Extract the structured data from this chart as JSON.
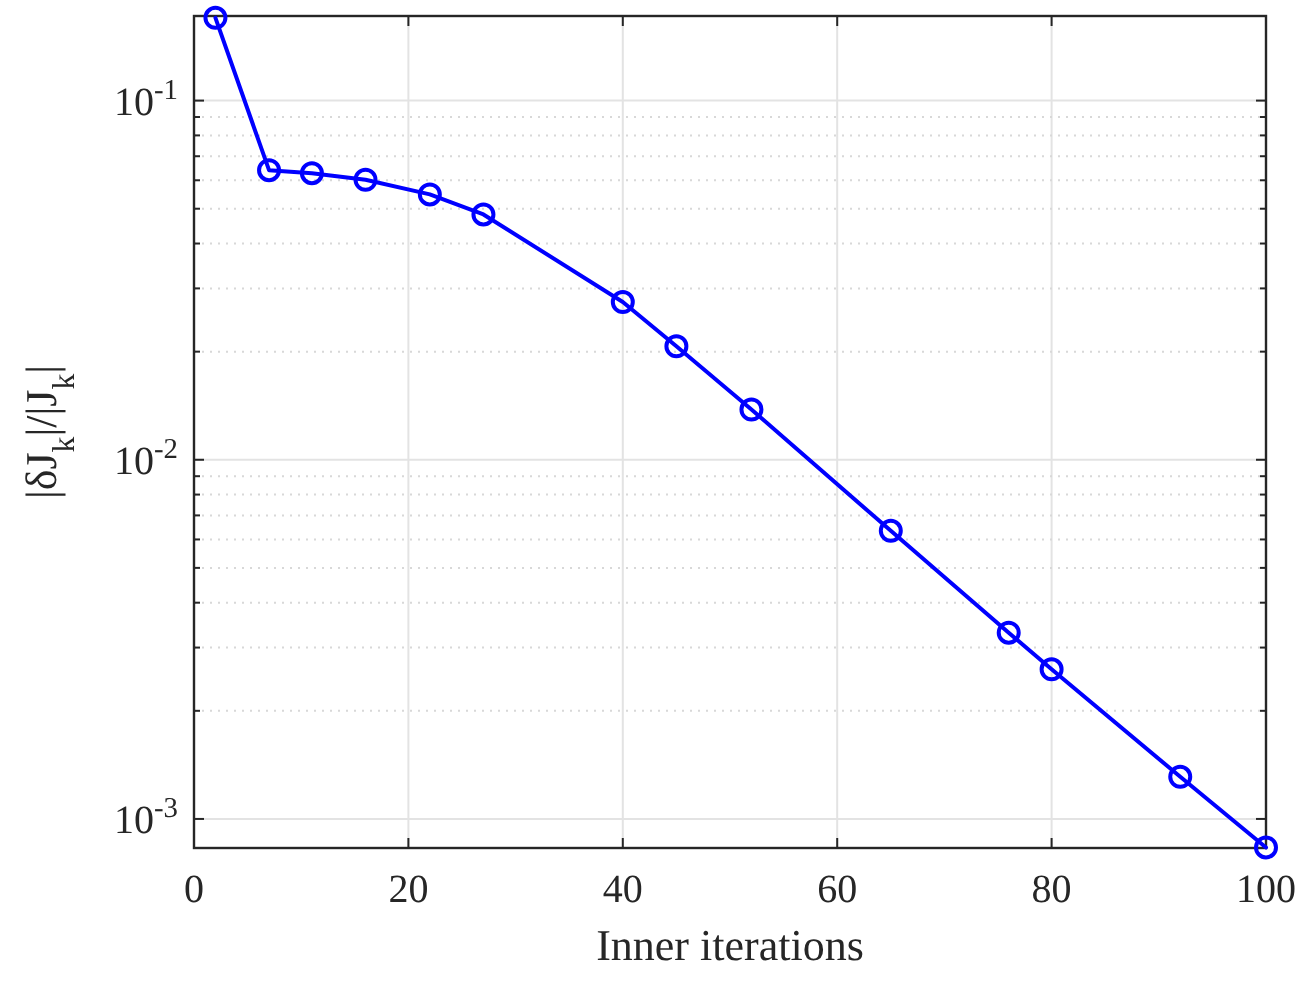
{
  "chart_data": {
    "type": "line",
    "xlabel": "Inner iterations",
    "ylabel": "|δJ$_{k}$|/|J$_{k}$|",
    "x": [
      2,
      7,
      11,
      16,
      22,
      27,
      40,
      45,
      52,
      65,
      76,
      80,
      92,
      100
    ],
    "series": [
      {
        "color": "#0000ff",
        "values": [
          0.17,
          0.064,
          0.0628,
          0.0602,
          0.0548,
          0.0482,
          0.0275,
          0.0207,
          0.0138,
          0.00634,
          0.0033,
          0.00261,
          0.00131,
          0.000833
        ]
      }
    ],
    "xlim": [
      0,
      100
    ],
    "xticks": [
      0,
      20,
      40,
      60,
      80,
      100
    ],
    "ylim": [
      0.00083,
      0.172
    ],
    "yticks": [
      {
        "value": 0.001,
        "label": "10$^{-3}$"
      },
      {
        "value": 0.002,
        "label": null
      },
      {
        "value": 0.003,
        "label": null
      },
      {
        "value": 0.004,
        "label": null
      },
      {
        "value": 0.005,
        "label": null
      },
      {
        "value": 0.006,
        "label": null
      },
      {
        "value": 0.007,
        "label": null
      },
      {
        "value": 0.008,
        "label": null
      },
      {
        "value": 0.009,
        "label": null
      },
      {
        "value": 0.01,
        "label": "10$^{-2}$"
      },
      {
        "value": 0.02,
        "label": null
      },
      {
        "value": 0.03,
        "label": null
      },
      {
        "value": 0.04,
        "label": null
      },
      {
        "value": 0.05,
        "label": null
      },
      {
        "value": 0.06,
        "label": null
      },
      {
        "value": 0.07,
        "label": null
      },
      {
        "value": 0.08,
        "label": null
      },
      {
        "value": 0.09,
        "label": null
      },
      {
        "value": 0.1,
        "label": "10$^{-1}$"
      }
    ],
    "log": "y",
    "grid": true,
    "marker": "circle",
    "line_style": "solid"
  }
}
